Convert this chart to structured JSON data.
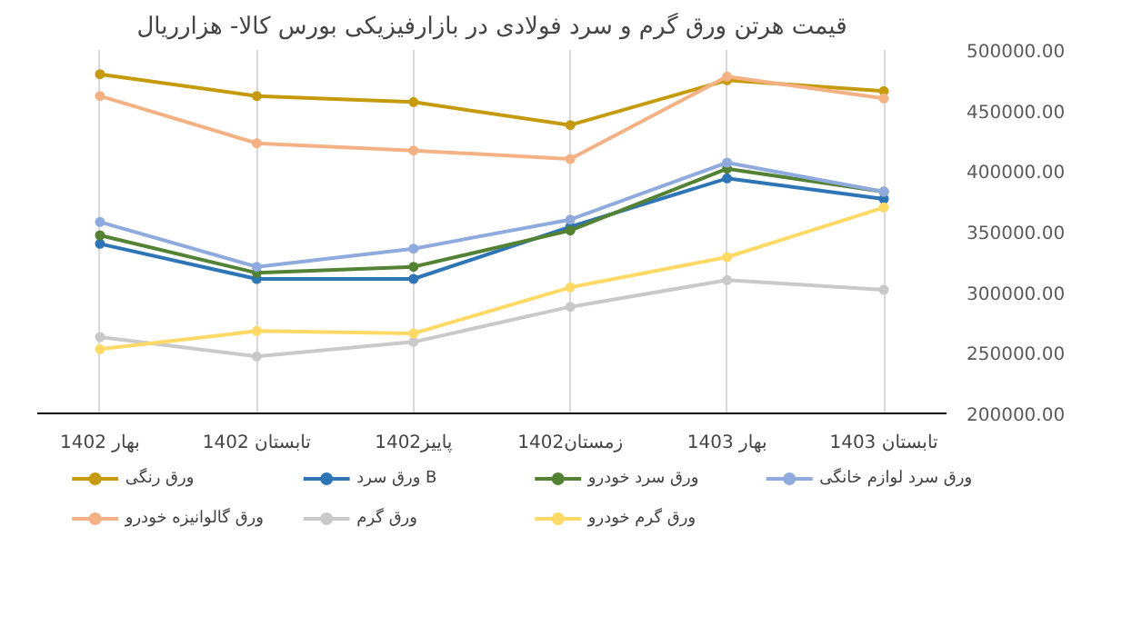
{
  "chart_data": {
    "type": "line",
    "title": "قیمت هرتن ورق گرم و سرد فولادی در بازارفیزیکی بورس کالا- هزارریال",
    "categories": [
      "بهار 1402",
      "تابستان 1402",
      "پاییز1402",
      "زمستان1402",
      "بهار 1403",
      "تابستان 1403"
    ],
    "series": [
      {
        "name": "ورق رنگی",
        "color": "#c59a0c",
        "values": [
          480000,
          462000,
          457000,
          438000,
          475000,
          466000
        ]
      },
      {
        "name": "ورق سرد B",
        "color": "#2e75b6",
        "values": [
          340000,
          311000,
          311000,
          354000,
          394000,
          377000
        ]
      },
      {
        "name": "ورق سرد خودرو",
        "color": "#548235",
        "values": [
          347000,
          316000,
          321000,
          351000,
          402000,
          383000
        ]
      },
      {
        "name": "ورق سرد لوازم خانگی",
        "color": "#8faadc",
        "values": [
          358000,
          321000,
          336000,
          360000,
          407000,
          383000
        ]
      },
      {
        "name": "ورق گالوانیزه خودرو",
        "color": "#f4b183",
        "values": [
          462000,
          423000,
          417000,
          410000,
          478000,
          460000
        ]
      },
      {
        "name": "ورق گرم",
        "color": "#c9c9c9",
        "values": [
          263000,
          247000,
          259000,
          288000,
          310000,
          302000
        ]
      },
      {
        "name": "ورق گرم خودرو",
        "color": "#ffd966",
        "values": [
          253000,
          268000,
          266000,
          304000,
          329000,
          370000
        ]
      }
    ],
    "ylim": [
      200000,
      500000
    ],
    "yticks": [
      {
        "value": 200000,
        "label": "200000.00"
      },
      {
        "value": 250000,
        "label": "250000.00"
      },
      {
        "value": 300000,
        "label": "300000.00"
      },
      {
        "value": 350000,
        "label": "350000.00"
      },
      {
        "value": 400000,
        "label": "400000.00"
      },
      {
        "value": 450000,
        "label": "450000.00"
      },
      {
        "value": 500000,
        "label": "500000.00"
      }
    ],
    "grid": "x",
    "legend": "bottom",
    "marker": "circle",
    "line_style": "solid"
  }
}
